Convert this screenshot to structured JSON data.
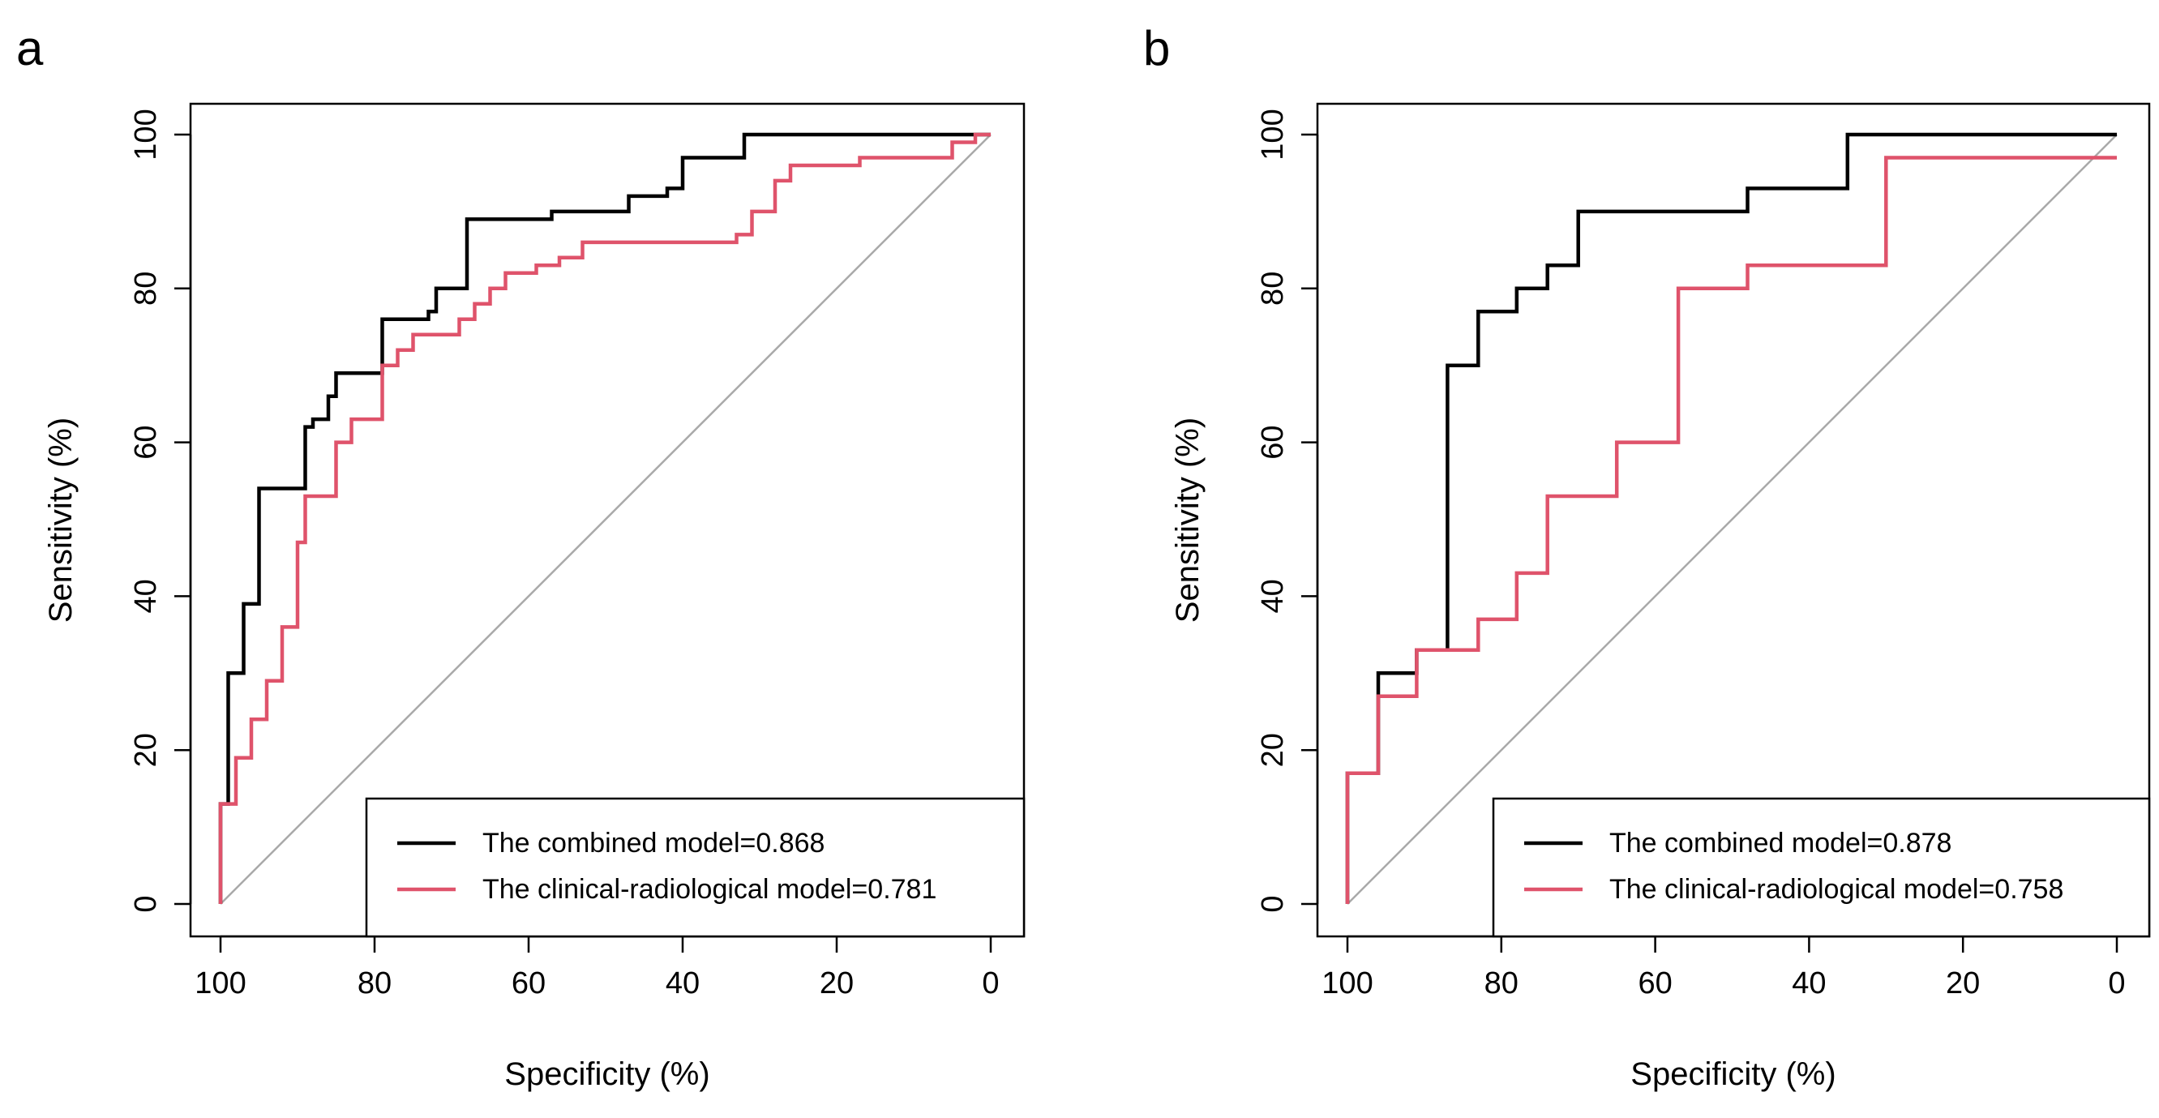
{
  "chart_data": [
    {
      "type": "line",
      "panel_label": "a",
      "xlabel": "Specificity (%)",
      "ylabel": "Sensitivity (%)",
      "xlim": [
        100,
        0
      ],
      "ylim": [
        0,
        100
      ],
      "xticks": [
        100,
        80,
        60,
        40,
        20,
        0
      ],
      "yticks": [
        0,
        20,
        40,
        60,
        80,
        100
      ],
      "diagonal": {
        "from": [
          100,
          0
        ],
        "to": [
          0,
          100
        ],
        "color": "#a9a9a9"
      },
      "legend_position": "bottom-right",
      "series": [
        {
          "name": "The combined model=0.868",
          "color": "#000000",
          "x": [
            100,
            100,
            99,
            99,
            97,
            97,
            95,
            95,
            89,
            89,
            88,
            88,
            86,
            86,
            85,
            85,
            79,
            79,
            73,
            73,
            72,
            72,
            68,
            68,
            57,
            57,
            47,
            47,
            42,
            42,
            40,
            40,
            32,
            32,
            0
          ],
          "y": [
            0,
            13,
            13,
            30,
            30,
            39,
            39,
            54,
            54,
            62,
            62,
            63,
            63,
            66,
            66,
            69,
            69,
            76,
            76,
            77,
            77,
            80,
            80,
            89,
            89,
            90,
            90,
            92,
            92,
            93,
            93,
            97,
            97,
            100,
            100
          ]
        },
        {
          "name": "The clinical-radiological model=0.781",
          "color": "#df536b",
          "x": [
            100,
            100,
            98,
            98,
            96,
            96,
            94,
            94,
            92,
            92,
            90,
            90,
            89,
            89,
            85,
            85,
            83,
            83,
            79,
            79,
            77,
            77,
            75,
            75,
            69,
            69,
            67,
            67,
            65,
            65,
            63,
            63,
            59,
            59,
            56,
            56,
            53,
            53,
            33,
            33,
            31,
            31,
            28,
            28,
            26,
            26,
            17,
            17,
            5,
            5,
            2,
            2,
            0
          ],
          "y": [
            0,
            13,
            13,
            19,
            19,
            24,
            24,
            29,
            29,
            36,
            36,
            47,
            47,
            53,
            53,
            60,
            60,
            63,
            63,
            70,
            70,
            72,
            72,
            74,
            74,
            76,
            76,
            78,
            78,
            80,
            80,
            82,
            82,
            83,
            83,
            84,
            84,
            86,
            86,
            87,
            87,
            90,
            90,
            94,
            94,
            96,
            96,
            97,
            97,
            99,
            99,
            100,
            100
          ]
        }
      ]
    },
    {
      "type": "line",
      "panel_label": "b",
      "xlabel": "Specificity (%)",
      "ylabel": "Sensitivity (%)",
      "xlim": [
        100,
        0
      ],
      "ylim": [
        0,
        100
      ],
      "xticks": [
        100,
        80,
        60,
        40,
        20,
        0
      ],
      "yticks": [
        0,
        20,
        40,
        60,
        80,
        100
      ],
      "diagonal": {
        "from": [
          100,
          0
        ],
        "to": [
          0,
          100
        ],
        "color": "#a9a9a9"
      },
      "legend_position": "bottom-right",
      "series": [
        {
          "name": "The combined model=0.878",
          "color": "#000000",
          "x": [
            100,
            100,
            96,
            96,
            91,
            91,
            87,
            87,
            83,
            83,
            78,
            78,
            74,
            74,
            70,
            70,
            48,
            48,
            35,
            35,
            0
          ],
          "y": [
            0,
            17,
            17,
            30,
            30,
            33,
            33,
            70,
            70,
            77,
            77,
            80,
            80,
            83,
            83,
            90,
            90,
            93,
            93,
            100,
            100
          ]
        },
        {
          "name": "The clinical-radiological model=0.758",
          "color": "#df536b",
          "x": [
            100,
            100,
            96,
            96,
            91,
            91,
            83,
            83,
            78,
            78,
            74,
            74,
            65,
            65,
            57,
            57,
            48,
            48,
            30,
            30,
            0
          ],
          "y": [
            0,
            17,
            17,
            27,
            27,
            33,
            33,
            37,
            37,
            43,
            43,
            53,
            53,
            60,
            60,
            80,
            80,
            83,
            83,
            97,
            97
          ]
        }
      ]
    }
  ]
}
